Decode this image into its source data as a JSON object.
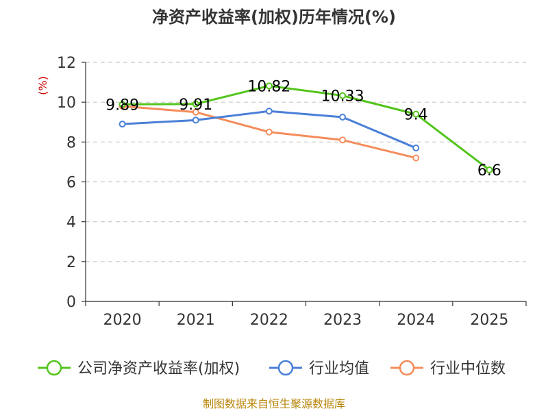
{
  "chart_data": {
    "type": "line",
    "title": "净资产收益率(加权)历年情况(%)",
    "ylabel": "(%)",
    "xlabel": "",
    "categories": [
      "2020",
      "2021",
      "2022",
      "2023",
      "2024",
      "2025"
    ],
    "ylim": [
      0,
      12
    ],
    "yticks": [
      0,
      2,
      4,
      6,
      8,
      10,
      12
    ],
    "grid": true,
    "legend_position": "bottom",
    "series": [
      {
        "name": "公司净资产收益率(加权)",
        "color": "#52c41a",
        "values": [
          9.89,
          9.91,
          10.82,
          10.33,
          9.4,
          6.6
        ],
        "labels": [
          "9.89",
          "9.91",
          "10.82",
          "10.33",
          "9.4",
          "6.6"
        ]
      },
      {
        "name": "行业均值",
        "color": "#4a7fd8",
        "values": [
          8.9,
          9.1,
          9.55,
          9.25,
          7.7,
          null
        ]
      },
      {
        "name": "行业中位数",
        "color": "#f58c5b",
        "values": [
          9.8,
          9.5,
          8.5,
          8.1,
          7.2,
          null
        ]
      }
    ],
    "source": "制图数据来自恒生聚源数据库"
  }
}
